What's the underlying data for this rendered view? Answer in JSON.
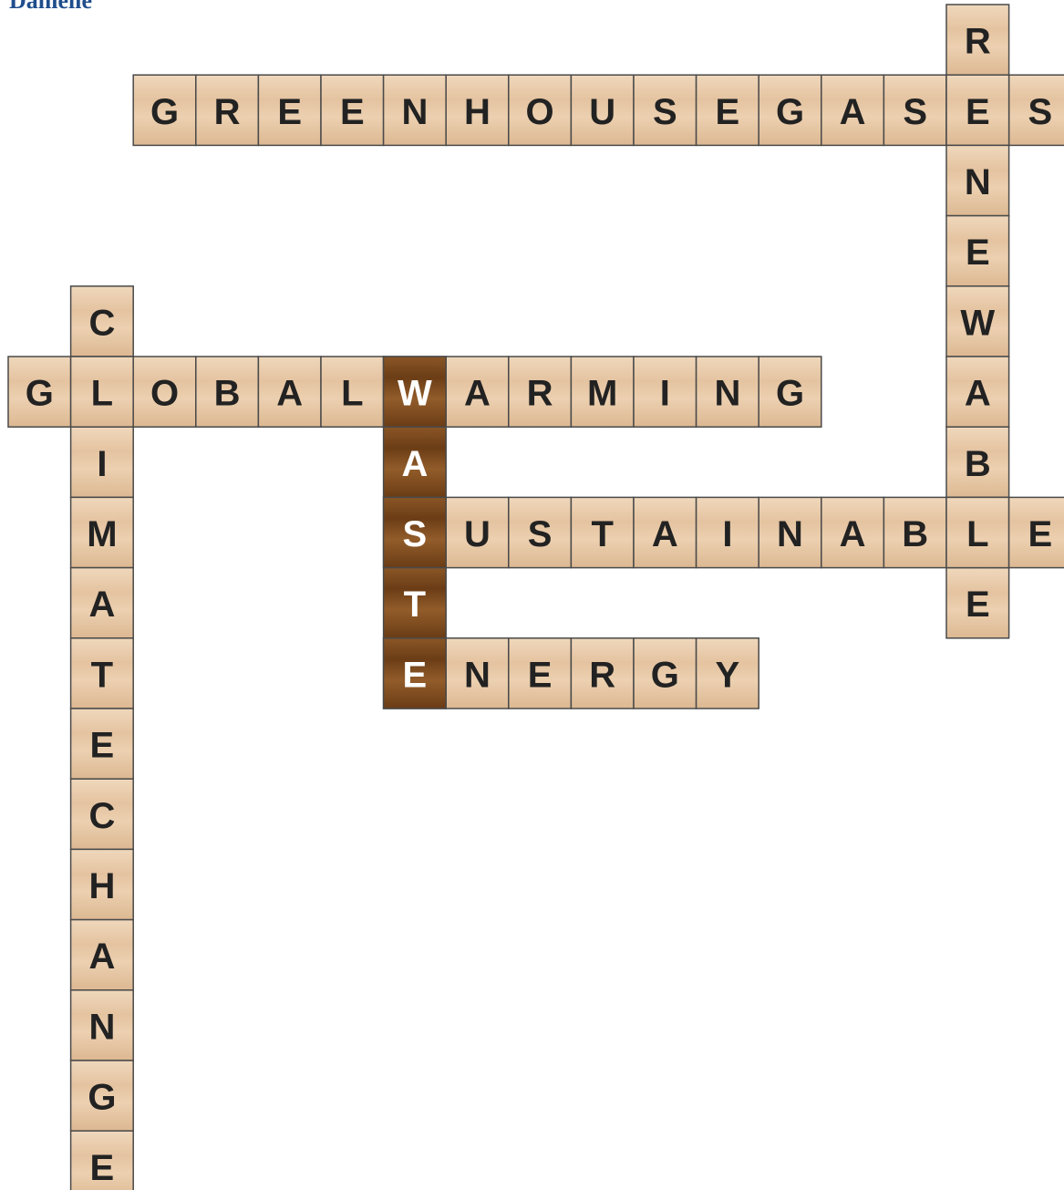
{
  "header": {
    "title": "Danielle"
  },
  "words": [
    {
      "letters": [
        "G",
        "R",
        "E",
        "E",
        "N",
        "H",
        "O",
        "U",
        "S",
        "E",
        "G",
        "A",
        "S",
        "E",
        "S"
      ]
    },
    {
      "letters": [
        "R",
        "E",
        "N",
        "E",
        "W",
        "A",
        "B",
        "L",
        "E"
      ]
    },
    {
      "letters": [
        "C",
        "L",
        "I",
        "M",
        "A",
        "T",
        "E",
        "C",
        "H",
        "A",
        "N",
        "G",
        "E"
      ]
    },
    {
      "letters": [
        "G",
        "L",
        "O",
        "B",
        "A",
        "L",
        "W",
        "A",
        "R",
        "M",
        "I",
        "N",
        "G"
      ]
    },
    {
      "letters": [
        "S",
        "U",
        "S",
        "T",
        "A",
        "I",
        "N",
        "A",
        "B",
        "L",
        "E"
      ]
    },
    {
      "letters": [
        "E",
        "N",
        "E",
        "R",
        "G",
        "Y"
      ]
    },
    {
      "letters": [
        "W",
        "A",
        "S",
        "T",
        "E"
      ],
      "highlighted": true
    }
  ]
}
